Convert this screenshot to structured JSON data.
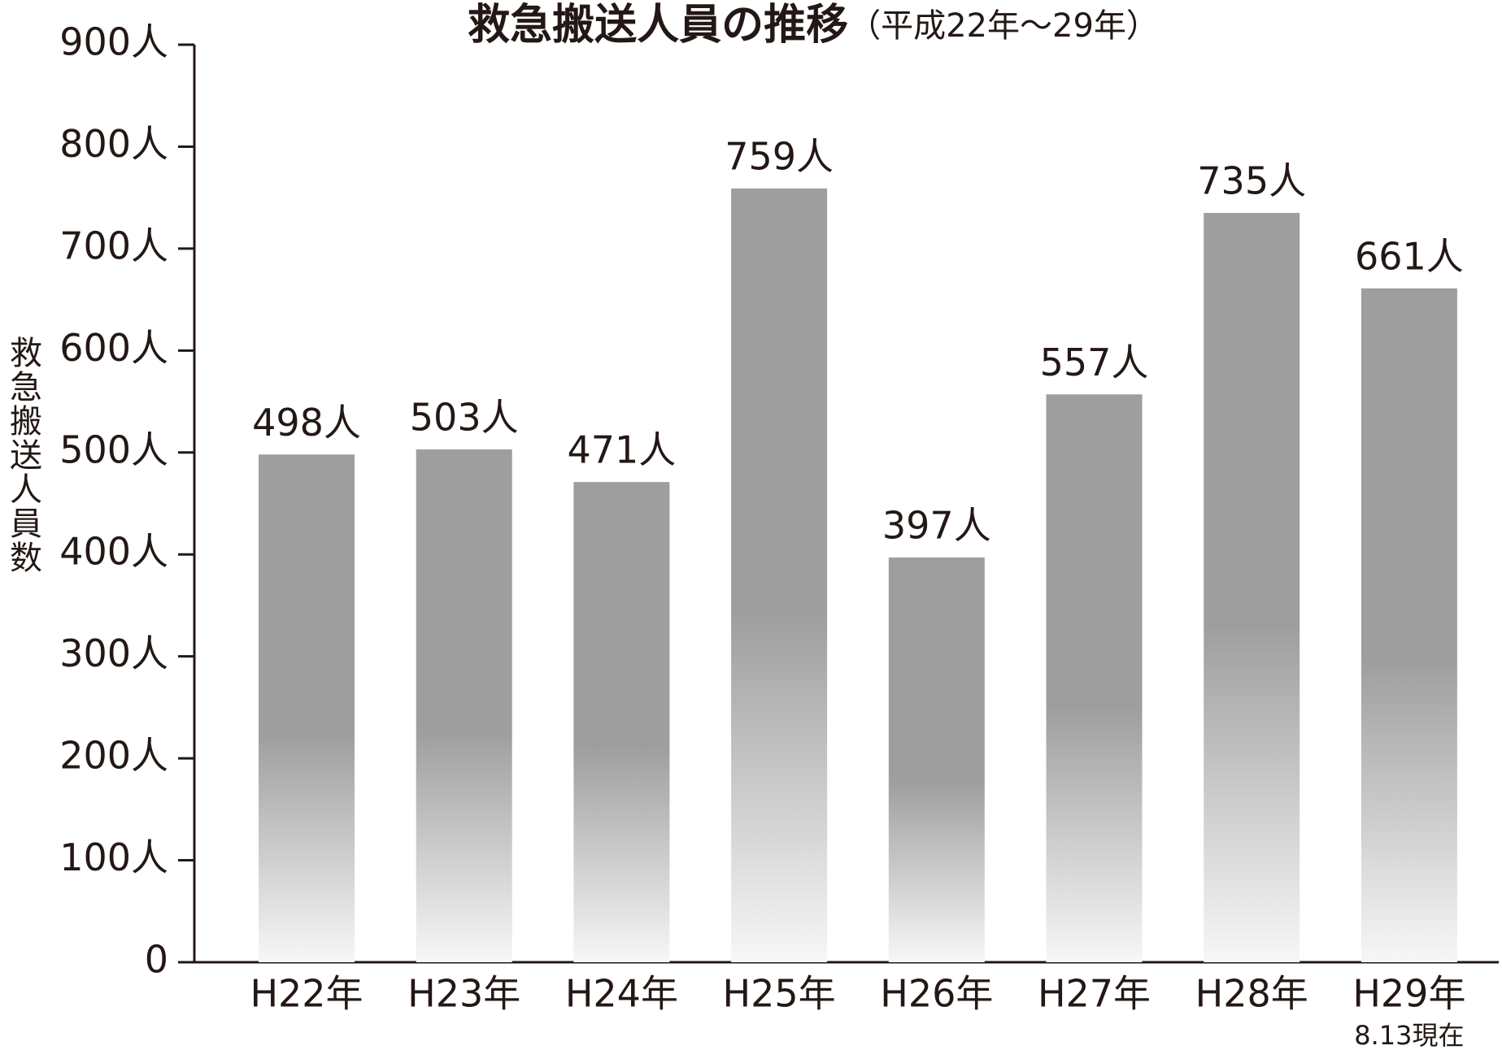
{
  "chart_data": {
    "type": "bar",
    "title": "救急搬送人員の推移",
    "subtitle": "（平成22年～29年）",
    "y_label": "救急搬送人員数",
    "categories": [
      "H22年",
      "H23年",
      "H24年",
      "H25年",
      "H26年",
      "H27年",
      "H28年",
      "H29年"
    ],
    "annotation": "8.13現在",
    "values": [
      498,
      503,
      471,
      759,
      397,
      557,
      735,
      661
    ],
    "value_labels": [
      "498人",
      "503人",
      "471人",
      "759人",
      "397人",
      "557人",
      "735人",
      "661人"
    ],
    "color": "#9e9e9e",
    "ylim": [
      0,
      900
    ],
    "yticks": [
      0,
      {
        "value": 100,
        "label": "100人"
      },
      {
        "value": 200,
        "label": "200人"
      },
      {
        "value": 300,
        "label": "300人"
      },
      {
        "value": 400,
        "label": "400人"
      },
      {
        "value": 500,
        "label": "500人"
      },
      {
        "value": 600,
        "label": "600人"
      },
      {
        "value": 700,
        "label": "700人"
      },
      {
        "value": 800,
        "label": "800人"
      },
      {
        "value": 900,
        "label": "900人"
      }
    ],
    "grid": false
  }
}
